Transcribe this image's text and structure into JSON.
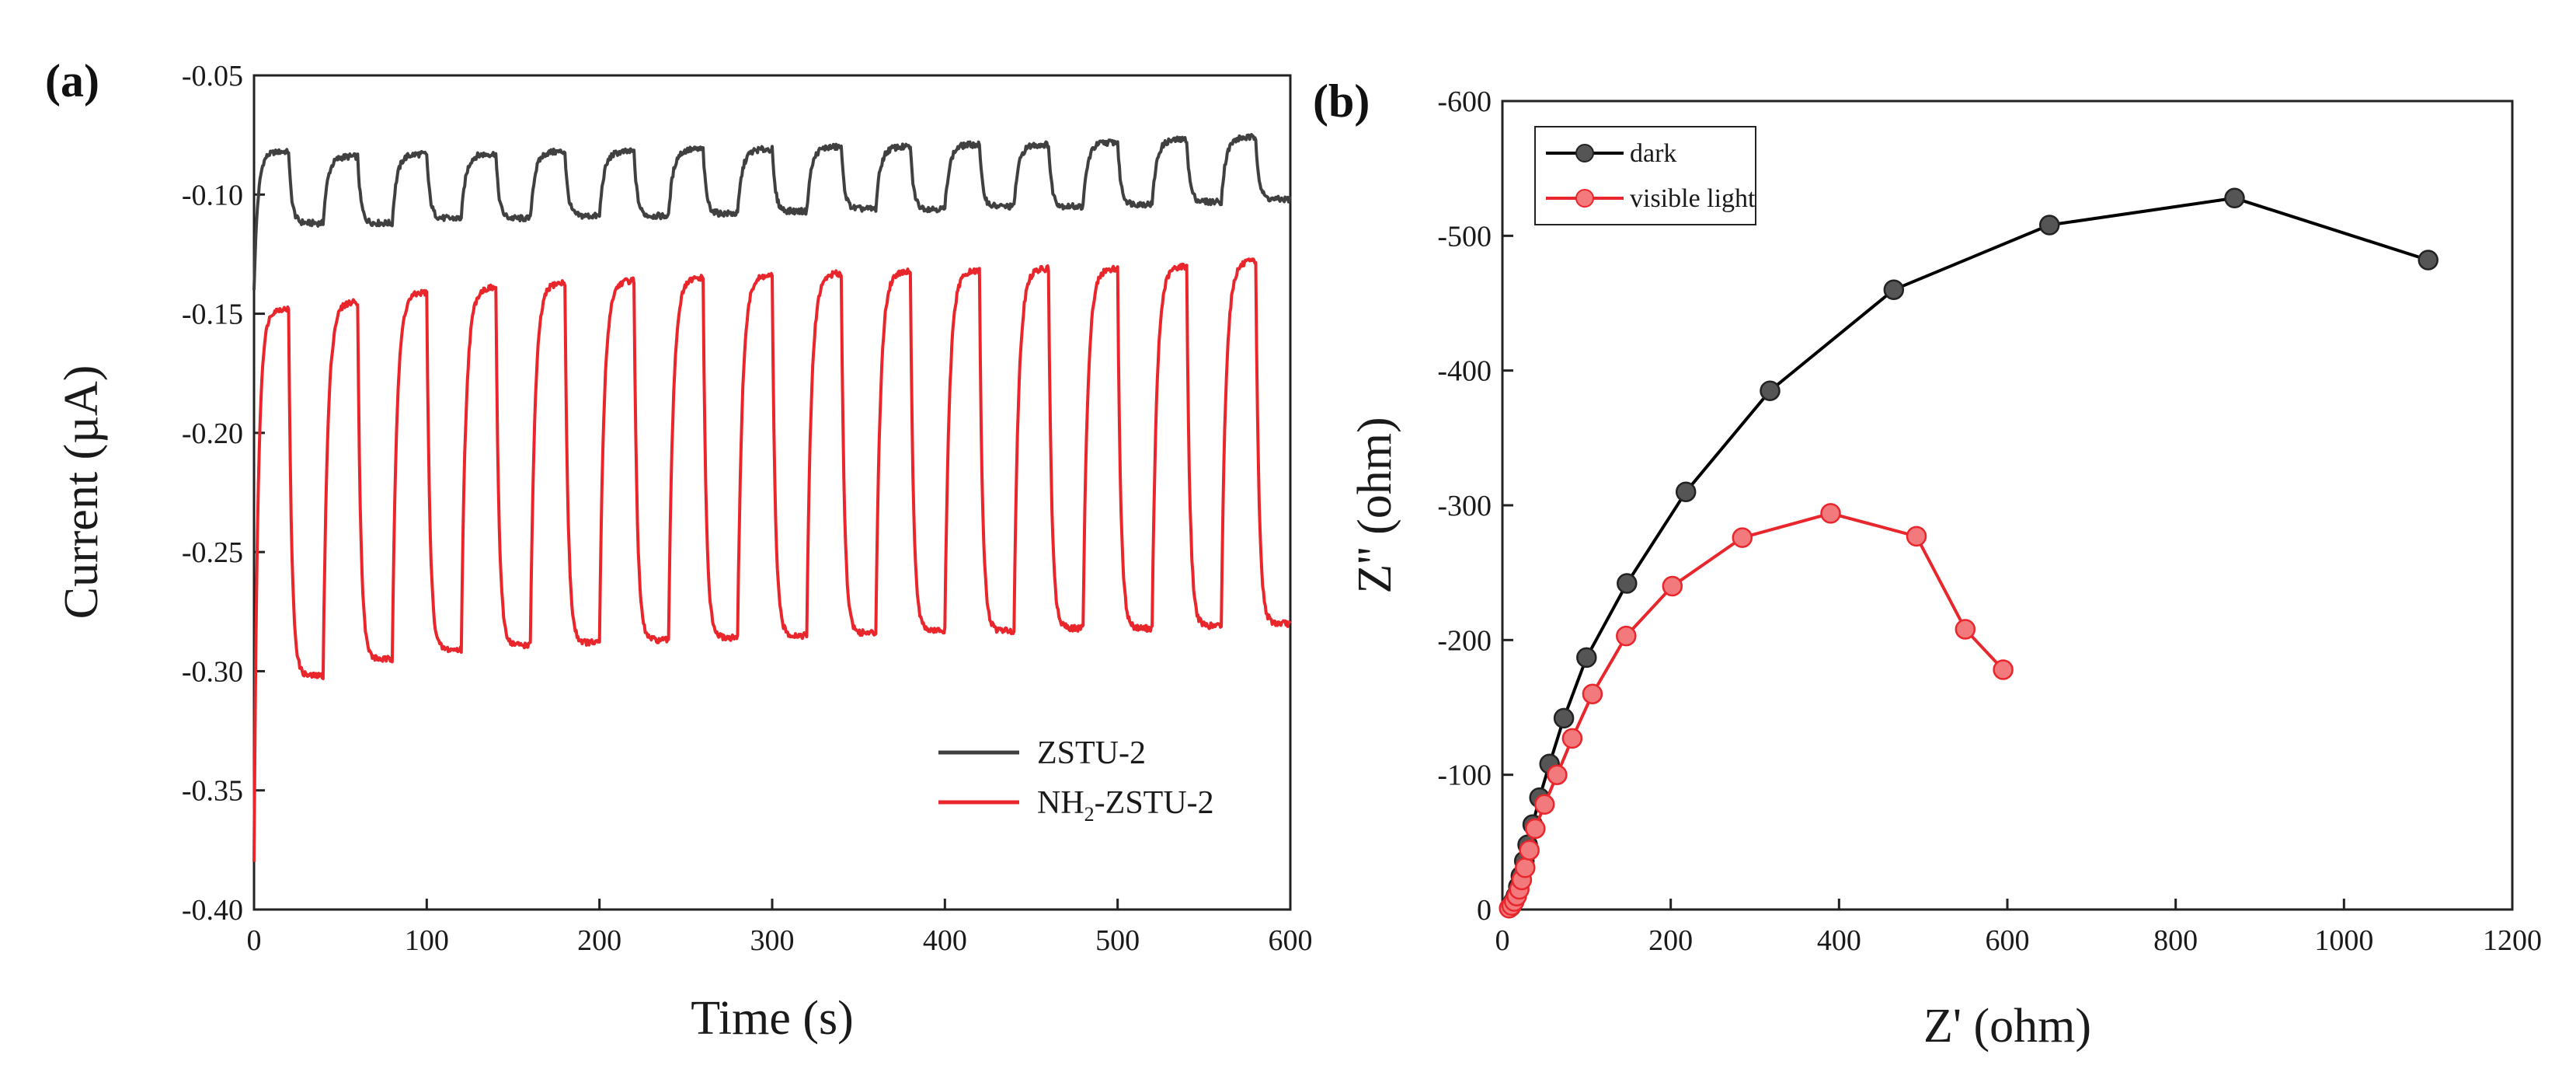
{
  "colors": {
    "zstu": "#404040",
    "nh2": "#e8262b",
    "dark": "#000000",
    "visible": "#e8262b",
    "marker_dark": "#555555",
    "marker_visible": "#e8262b"
  },
  "chart_data": [
    {
      "panel": "(a)",
      "type": "line",
      "xlabel": "Time (s)",
      "ylabel": "Current (µA)",
      "xlim": [
        0,
        600
      ],
      "ylim": [
        -0.4,
        -0.05
      ],
      "xticks": [
        "0",
        "100",
        "200",
        "300",
        "400",
        "500",
        "600"
      ],
      "yticks": [
        "-0.05",
        "-0.10",
        "-0.15",
        "-0.20",
        "-0.25",
        "-0.30",
        "-0.35",
        "-0.40"
      ],
      "light_period_s": 40,
      "legend_position": "bottom-right",
      "series": [
        {
          "name": "ZSTU-2",
          "description": "square-wave photocurrent response, light on/off every 20 s",
          "initial_value": -0.14,
          "on_values": [
            -0.082,
            -0.084,
            -0.083,
            -0.083,
            -0.082,
            -0.082,
            -0.081,
            -0.081,
            -0.08,
            -0.08,
            -0.079,
            -0.079,
            -0.078,
            -0.077,
            -0.076
          ],
          "off_values": [
            -0.112,
            -0.112,
            -0.11,
            -0.11,
            -0.109,
            -0.109,
            -0.108,
            -0.107,
            -0.106,
            -0.106,
            -0.105,
            -0.105,
            -0.104,
            -0.103,
            -0.102
          ]
        },
        {
          "name": "NH2-ZSTU-2",
          "name_parts": {
            "prefix": "NH",
            "subscript": "2",
            "suffix": "-ZSTU-2"
          },
          "description": "square-wave photocurrent response, light on/off every 20 s",
          "initial_value": -0.38,
          "on_values": [
            -0.148,
            -0.145,
            -0.141,
            -0.139,
            -0.137,
            -0.136,
            -0.135,
            -0.134,
            -0.133,
            -0.132,
            -0.132,
            -0.131,
            -0.131,
            -0.13,
            -0.128
          ],
          "off_values": [
            -0.302,
            -0.295,
            -0.291,
            -0.289,
            -0.288,
            -0.287,
            -0.286,
            -0.285,
            -0.284,
            -0.283,
            -0.283,
            -0.282,
            -0.282,
            -0.281,
            -0.28
          ]
        }
      ]
    },
    {
      "panel": "(b)",
      "type": "line",
      "xlabel": "Z' (ohm)",
      "ylabel": "Z'' (ohm)",
      "xlim": [
        0,
        1200
      ],
      "ylim": [
        0,
        -600
      ],
      "xticks": [
        "0",
        "200",
        "400",
        "600",
        "800",
        "1000",
        "1200"
      ],
      "yticks": [
        "-600",
        "-500",
        "-400",
        "-300",
        "-200",
        "-100",
        "0"
      ],
      "legend_position": "top-left",
      "series": [
        {
          "name": "dark",
          "x": [
            10,
            13,
            16,
            19,
            22,
            26,
            30,
            36,
            44,
            56,
            73,
            100,
            148,
            218,
            318,
            465,
            650,
            870,
            1100
          ],
          "y": [
            -2,
            -6,
            -10,
            -17,
            -25,
            -36,
            -48,
            -63,
            -83,
            -108,
            -142,
            -187,
            -242,
            -310,
            -385,
            -460,
            -508,
            -528,
            -482
          ]
        },
        {
          "name": "visible light",
          "x": [
            8,
            11,
            14,
            17,
            20,
            23,
            27,
            32,
            39,
            50,
            65,
            83,
            107,
            147,
            202,
            285,
            390,
            492,
            550,
            595
          ],
          "y": [
            -1,
            -3,
            -6,
            -10,
            -15,
            -22,
            -31,
            -44,
            -60,
            -78,
            -100,
            -127,
            -160,
            -203,
            -240,
            -276,
            -294,
            -277,
            -208,
            -178
          ]
        }
      ]
    }
  ]
}
